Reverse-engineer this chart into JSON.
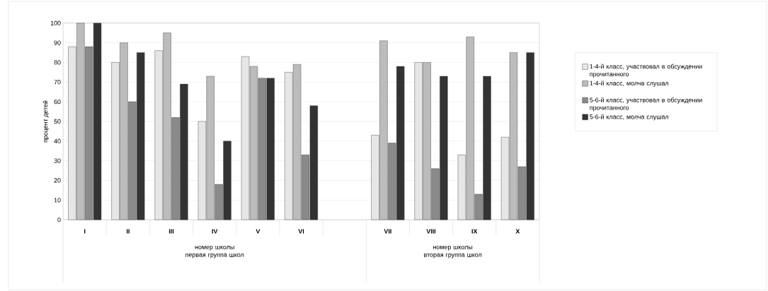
{
  "chart_data": {
    "type": "bar",
    "ylabel": "процент детей",
    "categories": [
      "I",
      "II",
      "III",
      "IV",
      "V",
      "VI",
      null,
      "VII",
      "VIII",
      "IX",
      "X"
    ],
    "series": [
      {
        "name": "1-4-й класс, участвовал в обсуждении прочитанного",
        "color": "#e6e6e6",
        "values": [
          88,
          80,
          86,
          50,
          83,
          75,
          null,
          43,
          80,
          33,
          42
        ]
      },
      {
        "name": "1-4-й класс, молча слушал",
        "color": "#bcbcbc",
        "values": [
          100,
          90,
          95,
          73,
          78,
          79,
          null,
          91,
          80,
          93,
          85
        ]
      },
      {
        "name": "5-6-й класс, участвовал в обсуждении прочитанного",
        "color": "#8a8a8a",
        "values": [
          88,
          60,
          52,
          18,
          72,
          33,
          null,
          39,
          26,
          13,
          27
        ]
      },
      {
        "name": "5-6-й класс, молча слушал",
        "color": "#333333",
        "values": [
          100,
          85,
          69,
          40,
          72,
          58,
          null,
          78,
          73,
          73,
          85
        ]
      }
    ],
    "ylim": [
      0,
      100
    ],
    "yticks": [
      0,
      10,
      20,
      30,
      40,
      50,
      60,
      70,
      80,
      90,
      100
    ],
    "grid": "y",
    "legend": "right",
    "annotations": [
      "номер школы\nпервая группа школ",
      "номер школы\nвторая группа школ"
    ]
  }
}
